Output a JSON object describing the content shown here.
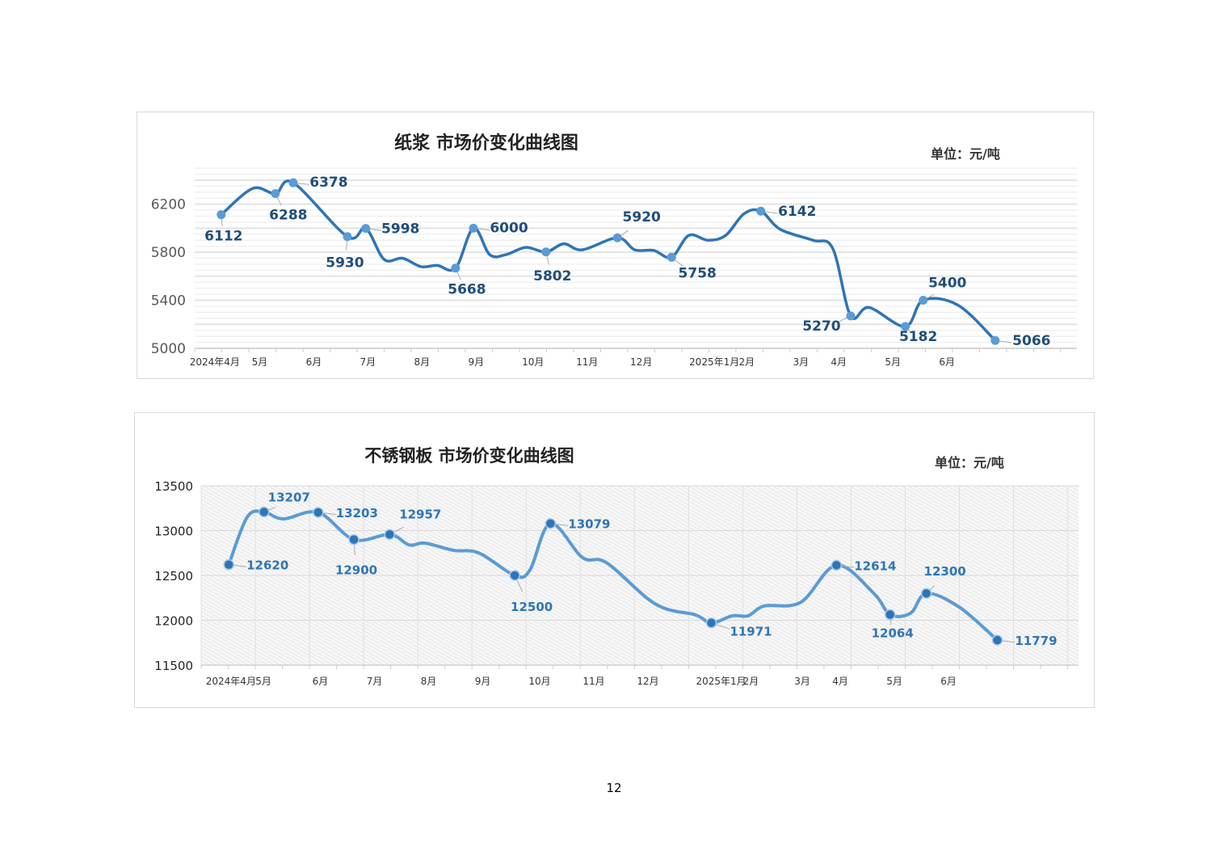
{
  "page_number": "12",
  "chart_data": [
    {
      "type": "line",
      "title": "纸浆 市场价变化曲线图",
      "unit": "单位：元/吨",
      "xlabel": "",
      "ylabel": "",
      "ylim": [
        5000,
        6500
      ],
      "yticks": [
        "5000",
        "5400",
        "5800",
        "6200"
      ],
      "ytick_values": [
        5000,
        5400,
        5800,
        6200
      ],
      "xticks": [
        "2024年4月",
        "5月",
        "6月",
        "7月",
        "8月",
        "9月",
        "10月",
        "11月",
        "12月",
        "2025年1月",
        "2月",
        "3月",
        "4月",
        "5月",
        "6月"
      ],
      "xtick_months": [
        0.37,
        1.2,
        2.2,
        3.2,
        4.2,
        5.2,
        6.25,
        7.25,
        8.25,
        9.6,
        10.2,
        11.2,
        11.9,
        12.9,
        13.9
      ],
      "xlim": [
        0,
        16.3
      ],
      "color": "#2e75b6",
      "marker_color": "#5b9bd5",
      "label_color": "#1f4e79",
      "grid": "horizontal",
      "series": [
        {
          "name": "纸浆",
          "points": [
            {
              "x": 0.49,
              "y": 6112,
              "label": "6112"
            },
            {
              "x": 1.07,
              "y": 6330
            },
            {
              "x": 1.49,
              "y": 6288,
              "label": "6288"
            },
            {
              "x": 1.82,
              "y": 6378,
              "label": "6378"
            },
            {
              "x": 2.82,
              "y": 5930,
              "label": "5930"
            },
            {
              "x": 3.16,
              "y": 5998,
              "label": "5998"
            },
            {
              "x": 3.5,
              "y": 5740
            },
            {
              "x": 3.84,
              "y": 5750
            },
            {
              "x": 4.18,
              "y": 5680
            },
            {
              "x": 4.48,
              "y": 5690
            },
            {
              "x": 4.82,
              "y": 5668,
              "label": "5668"
            },
            {
              "x": 5.15,
              "y": 6000,
              "label": "6000"
            },
            {
              "x": 5.45,
              "y": 5780
            },
            {
              "x": 5.75,
              "y": 5780
            },
            {
              "x": 6.12,
              "y": 5840
            },
            {
              "x": 6.49,
              "y": 5802,
              "label": "5802"
            },
            {
              "x": 6.82,
              "y": 5870
            },
            {
              "x": 7.16,
              "y": 5820
            },
            {
              "x": 7.81,
              "y": 5920,
              "label": "5920"
            },
            {
              "x": 8.13,
              "y": 5820
            },
            {
              "x": 8.48,
              "y": 5815
            },
            {
              "x": 8.81,
              "y": 5758,
              "label": "5758"
            },
            {
              "x": 9.13,
              "y": 5940
            },
            {
              "x": 9.48,
              "y": 5900
            },
            {
              "x": 9.81,
              "y": 5940
            },
            {
              "x": 10.15,
              "y": 6120
            },
            {
              "x": 10.46,
              "y": 6142,
              "label": "6142"
            },
            {
              "x": 10.82,
              "y": 5990
            },
            {
              "x": 11.42,
              "y": 5900
            },
            {
              "x": 11.79,
              "y": 5830
            },
            {
              "x": 12.12,
              "y": 5270,
              "label": "5270"
            },
            {
              "x": 12.46,
              "y": 5340
            },
            {
              "x": 13.13,
              "y": 5182,
              "label": "5182"
            },
            {
              "x": 13.46,
              "y": 5400,
              "label": "5400"
            },
            {
              "x": 14.1,
              "y": 5360
            },
            {
              "x": 14.79,
              "y": 5066,
              "label": "5066"
            }
          ]
        }
      ]
    },
    {
      "type": "line",
      "title": "不锈钢板 市场价变化曲线图",
      "unit": "单位：元/吨",
      "xlabel": "",
      "ylabel": "",
      "ylim": [
        11500,
        13500
      ],
      "yticks": [
        "11500",
        "12000",
        "12500",
        "13000",
        "13500"
      ],
      "ytick_values": [
        11500,
        12000,
        12500,
        13000,
        13500
      ],
      "xticks": [
        "2024年4月",
        "5月",
        "6月",
        "7月",
        "8月",
        "9月",
        "10月",
        "11月",
        "12月",
        "2025年1月",
        "2月",
        "3月",
        "4月",
        "5月",
        "6月"
      ],
      "xtick_months": [
        0.55,
        1.15,
        2.2,
        3.2,
        4.2,
        5.2,
        6.25,
        7.25,
        8.25,
        9.6,
        10.15,
        11.1,
        11.8,
        12.8,
        13.8
      ],
      "xlim": [
        0,
        16.2
      ],
      "color": "#5b9bd5",
      "marker_color": "#2e75b6",
      "label_color": "#2e75b6",
      "grid": "hatched",
      "series": [
        {
          "name": "不锈钢板",
          "points": [
            {
              "x": 0.51,
              "y": 12620,
              "label": "12620"
            },
            {
              "x": 0.85,
              "y": 13150
            },
            {
              "x": 1.16,
              "y": 13207,
              "label": "13207"
            },
            {
              "x": 1.52,
              "y": 13130
            },
            {
              "x": 2.16,
              "y": 13203,
              "label": "13203"
            },
            {
              "x": 2.82,
              "y": 12900,
              "label": "12900"
            },
            {
              "x": 3.48,
              "y": 12957,
              "label": "12957"
            },
            {
              "x": 3.84,
              "y": 12840
            },
            {
              "x": 4.13,
              "y": 12860
            },
            {
              "x": 4.66,
              "y": 12780
            },
            {
              "x": 5.13,
              "y": 12750
            },
            {
              "x": 5.79,
              "y": 12500,
              "label": "12500"
            },
            {
              "x": 6.07,
              "y": 12560
            },
            {
              "x": 6.45,
              "y": 13079,
              "label": "13079"
            },
            {
              "x": 7.04,
              "y": 12700
            },
            {
              "x": 7.49,
              "y": 12640
            },
            {
              "x": 8.39,
              "y": 12180
            },
            {
              "x": 9.13,
              "y": 12060
            },
            {
              "x": 9.42,
              "y": 11971,
              "label": "11971"
            },
            {
              "x": 9.81,
              "y": 12050
            },
            {
              "x": 10.1,
              "y": 12050
            },
            {
              "x": 10.4,
              "y": 12160
            },
            {
              "x": 11.07,
              "y": 12200
            },
            {
              "x": 11.73,
              "y": 12614,
              "label": "12614"
            },
            {
              "x": 12.42,
              "y": 12300
            },
            {
              "x": 12.72,
              "y": 12064,
              "label": "12064"
            },
            {
              "x": 13.1,
              "y": 12080
            },
            {
              "x": 13.39,
              "y": 12300,
              "label": "12300"
            },
            {
              "x": 13.99,
              "y": 12150
            },
            {
              "x": 14.7,
              "y": 11779,
              "label": "11779"
            }
          ]
        }
      ]
    }
  ]
}
